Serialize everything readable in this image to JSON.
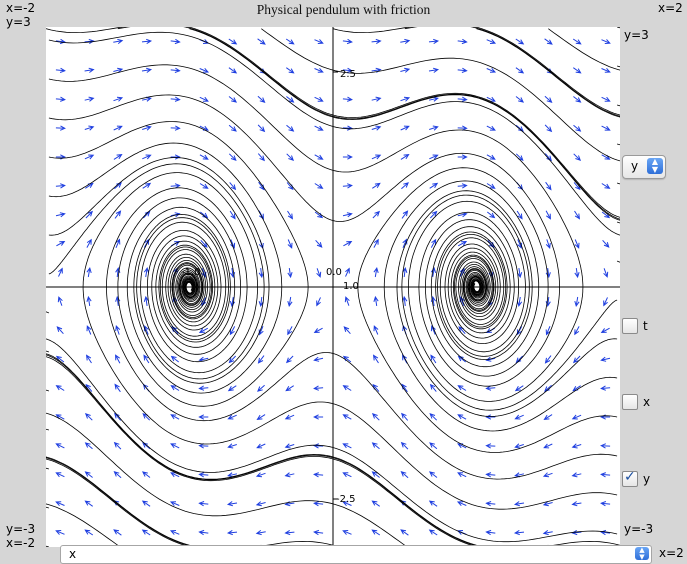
{
  "title": "Physical pendulum with friction",
  "corners": {
    "top_left_x": "x=-2",
    "top_left_y": "y=3",
    "top_right_x": "x=2",
    "top_right_y": "y=3",
    "bottom_left_y": "y=-3",
    "bottom_left_x": "x=-2",
    "bottom_right_y": "y=-3",
    "bottom_right_x": "x=2"
  },
  "axis_labels": {
    "x_neg1": "-1.0",
    "x_zero": "0.0",
    "x_pos1": "1.0",
    "y_top": "2.5",
    "y_bottom": "-2.5"
  },
  "controls": {
    "vertical_axis_select": "y",
    "checkbox_t_label": "t",
    "checkbox_t_checked": false,
    "checkbox_x_label": "x",
    "checkbox_x_checked": false,
    "checkbox_y_label": "y",
    "checkbox_y_checked": true,
    "horizontal_axis_select": "x"
  },
  "colors": {
    "field_arrows": "#1f3fe0",
    "trajectories": "#000000"
  },
  "chart_data": {
    "type": "phase-portrait",
    "xlim": [
      -2,
      2
    ],
    "ylim": [
      -3,
      3
    ],
    "equilibria": [
      [
        -1,
        0
      ],
      [
        1,
        0
      ]
    ],
    "saddle": [
      0,
      0
    ]
  }
}
